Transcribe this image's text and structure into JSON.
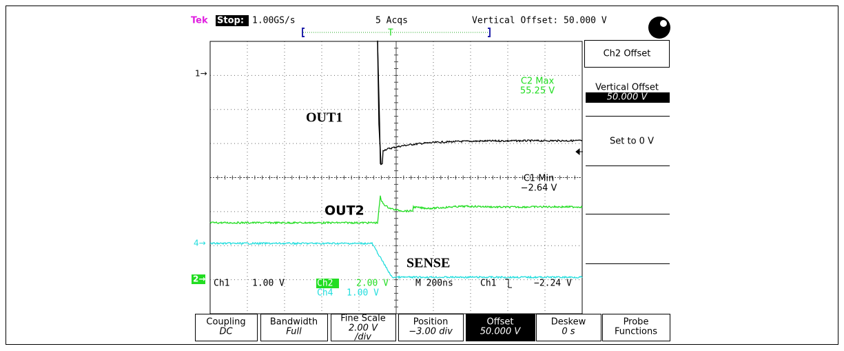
{
  "header": {
    "brand": "Tek",
    "state": "Stop:",
    "sample_rate": "1.00GS/s",
    "acquisitions": "5 Acqs",
    "vertical_offset": "Vertical Offset: 50.000 V",
    "trigger_marker": "T"
  },
  "channel_markers": [
    "1→",
    "4→",
    "2→"
  ],
  "readouts": {
    "c2_max": {
      "label": "C2 Max",
      "value": "55.25 V"
    },
    "c1_min": {
      "label": "C1 Min",
      "value": "−2.64 V"
    }
  },
  "traces": [
    "OUT1",
    "OUT2",
    "SENSE"
  ],
  "status": {
    "ch1": "Ch1",
    "ch1_scale": "1.00 V",
    "ch2": "Ch2",
    "ch2_scale": "2.00 V",
    "timebase": "M 200ns",
    "trigger_source": "Ch1",
    "trigger_level": "−2.24 V",
    "ch4": "Ch4",
    "ch4_scale": "1.00 V"
  },
  "side_menu": {
    "title": "Ch2 Offset",
    "item_label": "Vertical Offset",
    "item_value": "50.000 V",
    "set_zero": "Set to 0 V"
  },
  "bottom_menu": [
    {
      "label": "Coupling",
      "value": "DC"
    },
    {
      "label": "Bandwidth",
      "value": "Full"
    },
    {
      "label": "Fine Scale",
      "value": "2.00 V",
      "unit": "/div"
    },
    {
      "label": "Position",
      "value": "−3.00 div"
    },
    {
      "label": "Offset",
      "value": "50.000 V"
    },
    {
      "label": "Deskew",
      "value": "0 s"
    },
    {
      "label": "Probe",
      "value": "Functions"
    }
  ]
}
